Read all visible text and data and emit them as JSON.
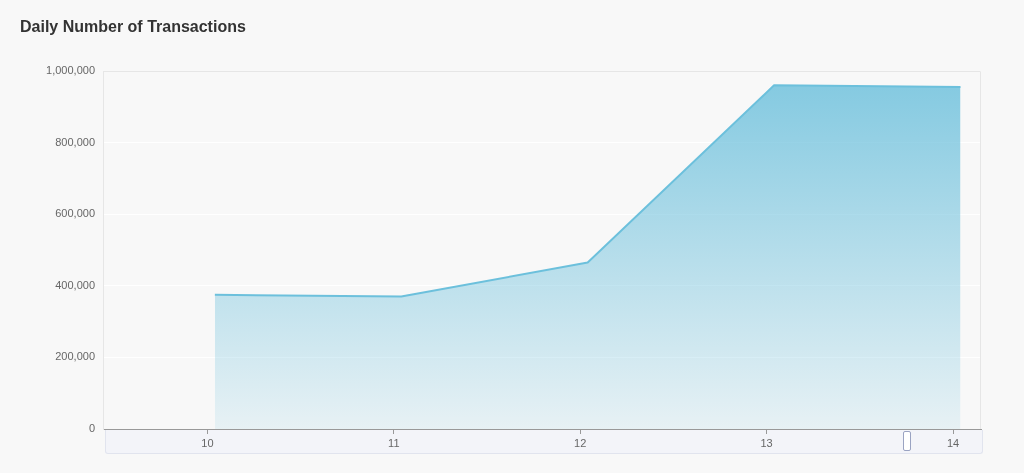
{
  "chart_data": {
    "type": "area",
    "title": "Daily Number of Transactions",
    "x": [
      10.04,
      11.04,
      12.04,
      13.04,
      14.04
    ],
    "values": [
      375000,
      370000,
      465000,
      960000,
      955000
    ],
    "color": "#6cc0dc",
    "xlim": [
      9.44,
      14.15
    ],
    "xticks": [
      10,
      11,
      12,
      13,
      14
    ],
    "ylim": [
      0,
      1000000
    ],
    "yticks": [
      0,
      {
        "value": 200000,
        "label": "200,000"
      },
      {
        "value": 400000,
        "label": "400,000"
      },
      {
        "value": 600000,
        "label": "600,000"
      },
      {
        "value": 800000,
        "label": "800,000"
      },
      {
        "value": 1000000,
        "label": "1,000,000"
      }
    ],
    "grid": "y",
    "marker": "none"
  }
}
